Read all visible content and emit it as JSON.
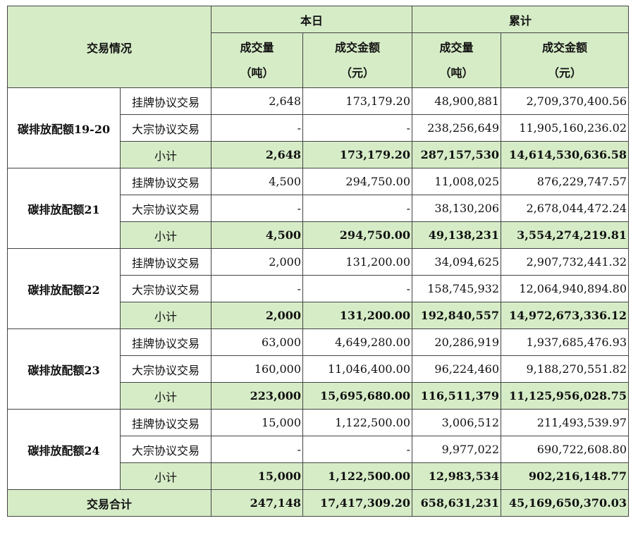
{
  "header": {
    "corner": "交易情况",
    "group_today": "本日",
    "group_cumulative": "累计",
    "col_volume": "成交量",
    "col_volume_unit": "（吨）",
    "col_amount": "成交金额",
    "col_amount_unit": "（元）"
  },
  "groups": [
    {
      "name": "碳排放配额19-20",
      "rows": [
        {
          "type": "挂牌协议交易",
          "today_volume": "2,648",
          "today_amount": "173,179.20",
          "cum_volume": "48,900,881",
          "cum_amount": "2,709,370,400.56"
        },
        {
          "type": "大宗协议交易",
          "today_volume": "-",
          "today_amount": "-",
          "cum_volume": "238,256,649",
          "cum_amount": "11,905,160,236.02"
        }
      ],
      "subtotal": {
        "label": "小计",
        "today_volume": "2,648",
        "today_amount": "173,179.20",
        "cum_volume": "287,157,530",
        "cum_amount": "14,614,530,636.58"
      }
    },
    {
      "name": "碳排放配额21",
      "rows": [
        {
          "type": "挂牌协议交易",
          "today_volume": "4,500",
          "today_amount": "294,750.00",
          "cum_volume": "11,008,025",
          "cum_amount": "876,229,747.57"
        },
        {
          "type": "大宗协议交易",
          "today_volume": "-",
          "today_amount": "-",
          "cum_volume": "38,130,206",
          "cum_amount": "2,678,044,472.24"
        }
      ],
      "subtotal": {
        "label": "小计",
        "today_volume": "4,500",
        "today_amount": "294,750.00",
        "cum_volume": "49,138,231",
        "cum_amount": "3,554,274,219.81"
      }
    },
    {
      "name": "碳排放配额22",
      "rows": [
        {
          "type": "挂牌协议交易",
          "today_volume": "2,000",
          "today_amount": "131,200.00",
          "cum_volume": "34,094,625",
          "cum_amount": "2,907,732,441.32"
        },
        {
          "type": "大宗协议交易",
          "today_volume": "-",
          "today_amount": "-",
          "cum_volume": "158,745,932",
          "cum_amount": "12,064,940,894.80"
        }
      ],
      "subtotal": {
        "label": "小计",
        "today_volume": "2,000",
        "today_amount": "131,200.00",
        "cum_volume": "192,840,557",
        "cum_amount": "14,972,673,336.12"
      }
    },
    {
      "name": "碳排放配额23",
      "rows": [
        {
          "type": "挂牌协议交易",
          "today_volume": "63,000",
          "today_amount": "4,649,280.00",
          "cum_volume": "20,286,919",
          "cum_amount": "1,937,685,476.93"
        },
        {
          "type": "大宗协议交易",
          "today_volume": "160,000",
          "today_amount": "11,046,400.00",
          "cum_volume": "96,224,460",
          "cum_amount": "9,188,270,551.82"
        }
      ],
      "subtotal": {
        "label": "小计",
        "today_volume": "223,000",
        "today_amount": "15,695,680.00",
        "cum_volume": "116,511,379",
        "cum_amount": "11,125,956,028.75"
      }
    },
    {
      "name": "碳排放配额24",
      "rows": [
        {
          "type": "挂牌协议交易",
          "today_volume": "15,000",
          "today_amount": "1,122,500.00",
          "cum_volume": "3,006,512",
          "cum_amount": "211,493,539.97"
        },
        {
          "type": "大宗协议交易",
          "today_volume": "-",
          "today_amount": "-",
          "cum_volume": "9,977,022",
          "cum_amount": "690,722,608.80"
        }
      ],
      "subtotal": {
        "label": "小计",
        "today_volume": "15,000",
        "today_amount": "1,122,500.00",
        "cum_volume": "12,983,534",
        "cum_amount": "902,216,148.77"
      }
    }
  ],
  "total": {
    "label": "交易合计",
    "today_volume": "247,148",
    "today_amount": "17,417,309.20",
    "cum_volume": "658,631,231",
    "cum_amount": "45,169,650,370.03"
  },
  "colors": {
    "header_bg": "#d6ecc7",
    "subtotal_bg": "#d6ecc7",
    "border": "#444444"
  }
}
